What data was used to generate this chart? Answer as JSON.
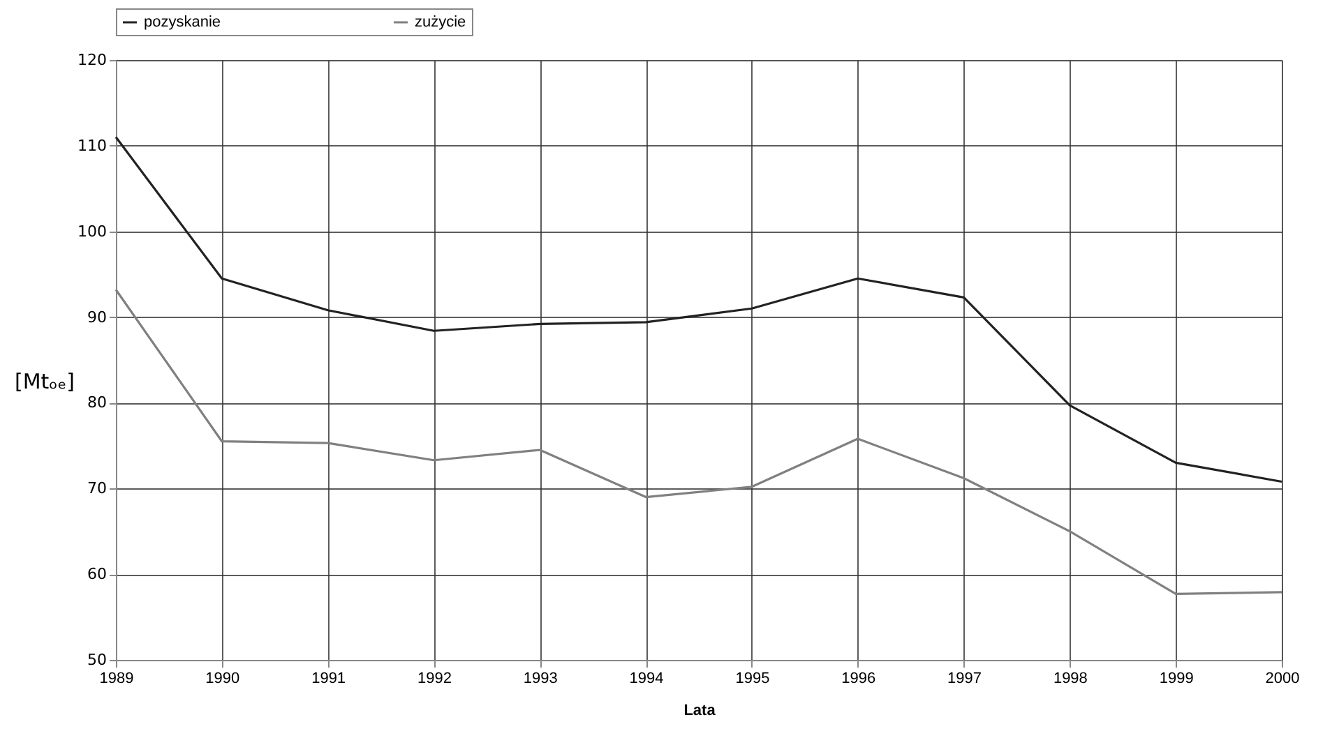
{
  "chart_data": {
    "type": "line",
    "xlabel": "Lata",
    "ylabel": "[Mtₒₑ]",
    "x": [
      1989,
      1990,
      1991,
      1992,
      1993,
      1994,
      1995,
      1996,
      1997,
      1998,
      1999,
      2000
    ],
    "series": [
      {
        "name": "pozyskanie",
        "color": "#222222",
        "values": [
          111,
          94.5,
          90.8,
          88.4,
          89.2,
          89.4,
          91,
          94.5,
          92.3,
          79.7,
          73,
          70.8
        ]
      },
      {
        "name": "zużycie",
        "color": "#808080",
        "values": [
          93.2,
          75.5,
          75.3,
          73.3,
          74.5,
          69,
          70.2,
          75.8,
          71.2,
          65,
          57.7,
          57.9
        ]
      }
    ],
    "xlim": [
      1989,
      2000
    ],
    "xticks": [
      1989,
      1990,
      1991,
      1992,
      1993,
      1994,
      1995,
      1996,
      1997,
      1998,
      1999,
      2000
    ],
    "ylim": [
      50,
      120
    ],
    "yticks": [
      50,
      60,
      70,
      80,
      90,
      100,
      110,
      120
    ],
    "grid": true,
    "legend": "top",
    "marker": "none",
    "line_style": "solid"
  }
}
